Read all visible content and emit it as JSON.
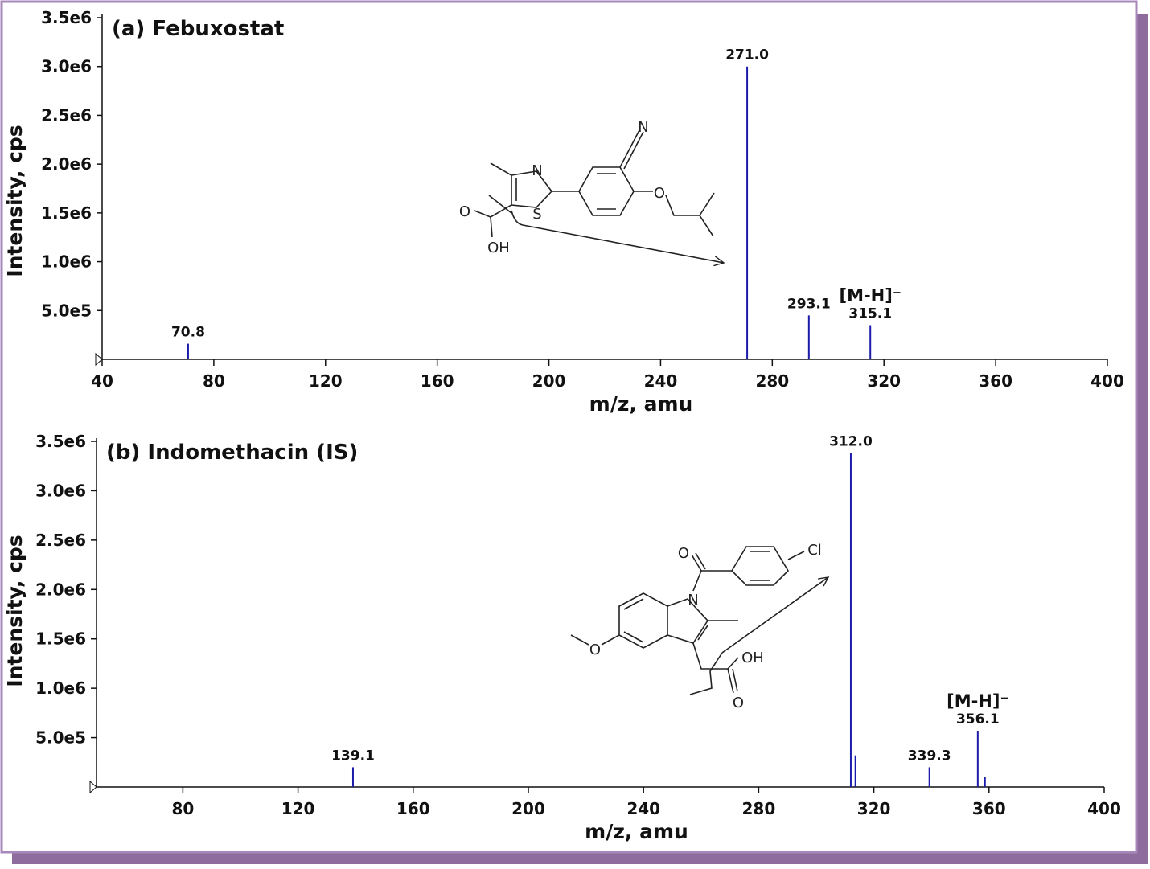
{
  "chart_data": [
    {
      "type": "stem",
      "title": "(a) Febuxostat",
      "xlabel": "m/z, amu",
      "ylabel": "Intensity, cps",
      "color": "#1c1caa",
      "x": [
        70.8,
        271.0,
        293.1,
        315.1
      ],
      "x_labels": [
        "70.8",
        "271.0",
        "293.1",
        "315.1"
      ],
      "values": [
        160000,
        3000000,
        450000,
        350000
      ],
      "annotations": [
        {
          "text": "[M-H]⁻",
          "x": 315.1
        }
      ],
      "xlim": [
        40,
        400
      ],
      "xticks": [
        40,
        80,
        120,
        160,
        200,
        240,
        280,
        320,
        360,
        400
      ],
      "ylim": [
        0,
        3500000
      ],
      "yticks": [
        {
          "value": 500000,
          "label": "5.0e5"
        },
        {
          "value": 1000000,
          "label": "1.0e6"
        },
        {
          "value": 1500000,
          "label": "1.5e6"
        },
        {
          "value": 2000000,
          "label": "2.0e6"
        },
        {
          "value": 2500000,
          "label": "2.5e6"
        },
        {
          "value": 3000000,
          "label": "3.0e6"
        },
        {
          "value": 3500000,
          "label": "3.5e6"
        }
      ],
      "structure_labels": [
        "N",
        "N",
        "S",
        "O",
        "O",
        "OH"
      ]
    },
    {
      "type": "stem",
      "title": "(b) Indomethacin (IS)",
      "xlabel": "m/z, amu",
      "ylabel": "Intensity, cps",
      "color": "#1c1caa",
      "x": [
        139.1,
        312.0,
        313.6,
        339.3,
        356.1,
        358.6
      ],
      "x_labels": [
        "139.1",
        "312.0",
        null,
        "339.3",
        "356.1",
        null
      ],
      "values": [
        200000,
        3380000,
        320000,
        200000,
        570000,
        100000
      ],
      "annotations": [
        {
          "text": "[M-H]⁻",
          "x": 356.1
        }
      ],
      "xlim": [
        50,
        400
      ],
      "xticks": [
        80,
        120,
        160,
        200,
        240,
        280,
        320,
        360,
        400
      ],
      "ylim": [
        0,
        3500000
      ],
      "yticks": [
        {
          "value": 500000,
          "label": "5.0e5"
        },
        {
          "value": 1000000,
          "label": "1.0e6"
        },
        {
          "value": 1500000,
          "label": "1.5e6"
        },
        {
          "value": 2000000,
          "label": "2.0e6"
        },
        {
          "value": 2500000,
          "label": "2.5e6"
        },
        {
          "value": 3000000,
          "label": "3.0e6"
        },
        {
          "value": 3500000,
          "label": "3.5e6"
        }
      ],
      "structure_labels": [
        "Cl",
        "O",
        "N",
        "O",
        "OH",
        "O"
      ]
    }
  ]
}
